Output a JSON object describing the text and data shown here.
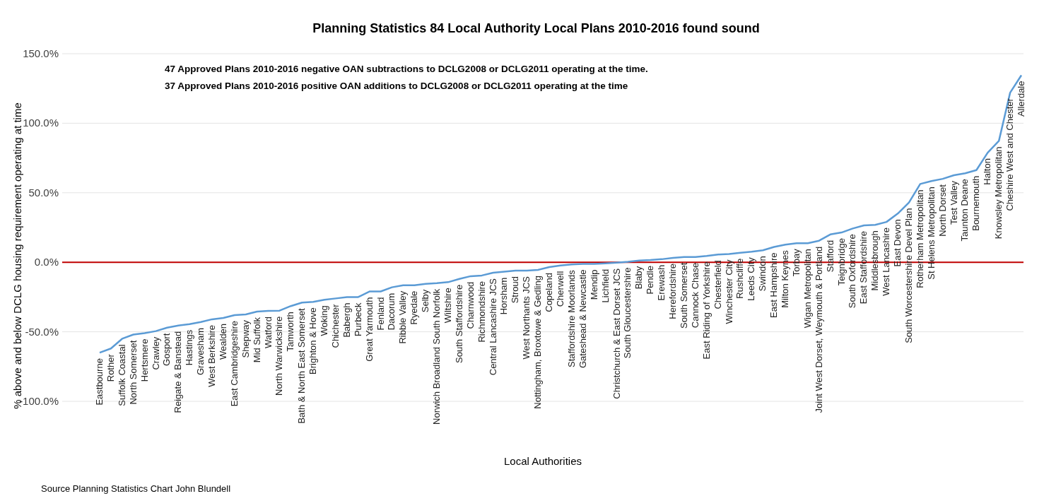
{
  "chart_data": {
    "type": "line",
    "title": "Planning Statistics 84 Local Authority Local Plans 2010-2016 found sound",
    "xlabel": "Local Authorities",
    "ylabel": "% above and below DCLG housing requirement operating at time",
    "annotations": [
      "47 Approved Plans 2010-2016 negative OAN subtractions to DCLG2008 or DCLG2011 operating at the time.",
      "37 Approved Plans 2010-2016 positive OAN additions to DCLG2008 or DCLG2011 operating at the time",
      "Source Planning Statistics Chart John Blundell"
    ],
    "categories": [
      "Eastbourne",
      "Rother",
      "Suffolk Coastal",
      "North Somerset",
      "Hertsmere",
      "Crawley",
      "Gosport",
      "Reigate & Banstead",
      "Hastings",
      "Gravesham",
      "West Berkshire",
      "Wealden",
      "East Cambridgeshire",
      "Shepway",
      "Mid Suffolk",
      "Watford",
      "North Warwickshire",
      "Tamworth",
      "Bath & North East Somerset",
      "Brighton & Hove",
      "Woking",
      "Chichester",
      "Babergh",
      "Purbeck",
      "Great Yarmouth",
      "Fenland",
      "Dacorum",
      "Ribble Valley",
      "Ryedale",
      "Selby",
      "Norwich Broadland South Norfolk",
      "Wiltshire",
      "South  Staffordshire",
      "Charnwood",
      "Richmondshire",
      "Central Lancashire JCS",
      "Horsham",
      "Stroud",
      "West Northants JCS",
      "Nottingham, Broxtowe & Gedling",
      "Copeland",
      "Cherwell",
      "Staffordshire Moorlands",
      "Gateshead & Newcastle",
      "Mendip",
      "Lichfield",
      "Christchurch & East Dorset JCS",
      "South Gloucestershire",
      "Blaby",
      "Pendle",
      "Erewash",
      "Herefordshire",
      "South Somerset",
      "Cannock Chase",
      "East Riding of Yorkshire",
      "Chesterfield",
      "Winchester City",
      "Rushcliffe",
      "Leeds City",
      "Swindon",
      "East Hampshire",
      "Milton Keynes",
      "Torbay",
      "Wigan Metropolitan",
      "Joint West Dorset, Weymouth & Portland",
      "Stafford",
      "Teignbridge",
      "South Oxfordshire",
      "East Staffordshire",
      "Middlesbrough",
      "West Lancashire",
      "East Devon",
      "South Worcestershire Devel Plan",
      "Rotherham Metropolitan",
      "St Helens Metropolitan",
      "North Dorset",
      "Test Valley",
      "Taunton Deane",
      "Bournemouth",
      "Halton",
      "Knowsley Metropolitan",
      "Cheshire West and Chester",
      "Allerdale"
    ],
    "series": [
      {
        "color": "#5b9bd5",
        "values": [
          -65,
          -62,
          -55,
          -52,
          -51,
          -49.5,
          -47,
          -45.5,
          -44.5,
          -43,
          -41,
          -40,
          -38,
          -37.5,
          -35.5,
          -35,
          -34.8,
          -31.5,
          -29,
          -28.5,
          -27,
          -26,
          -25,
          -25,
          -21,
          -21,
          -18,
          -16.5,
          -16.5,
          -15.5,
          -15,
          -14.3,
          -12,
          -10,
          -9.5,
          -7.5,
          -6.8,
          -6,
          -6,
          -5.5,
          -3.5,
          -2.3,
          -1.5,
          -1.2,
          -1.2,
          -0.8,
          -0.3,
          0.3,
          1.2,
          1.6,
          2.2,
          3.2,
          3.8,
          3.8,
          4.5,
          5.6,
          6,
          6.8,
          7.6,
          8.6,
          11,
          12.7,
          13.7,
          13.7,
          15.5,
          20,
          21.4,
          24.3,
          26.5,
          26.9,
          29,
          35,
          43,
          56.3,
          58.4,
          60,
          62.6,
          64,
          66.3,
          78.8,
          87.3,
          122,
          134.5
        ]
      }
    ],
    "ylim": [
      -100,
      150
    ],
    "yticks": [
      {
        "value": -100,
        "label": "-100.0%"
      },
      {
        "value": -50,
        "label": "-50.0%"
      },
      {
        "value": 0,
        "label": "0.0%"
      },
      {
        "value": 50,
        "label": "50.0%"
      },
      {
        "value": 100,
        "label": "100.0%"
      },
      {
        "value": 150,
        "label": "150.0%"
      }
    ],
    "grid": "y",
    "marker": "none",
    "line_style": "solid"
  }
}
